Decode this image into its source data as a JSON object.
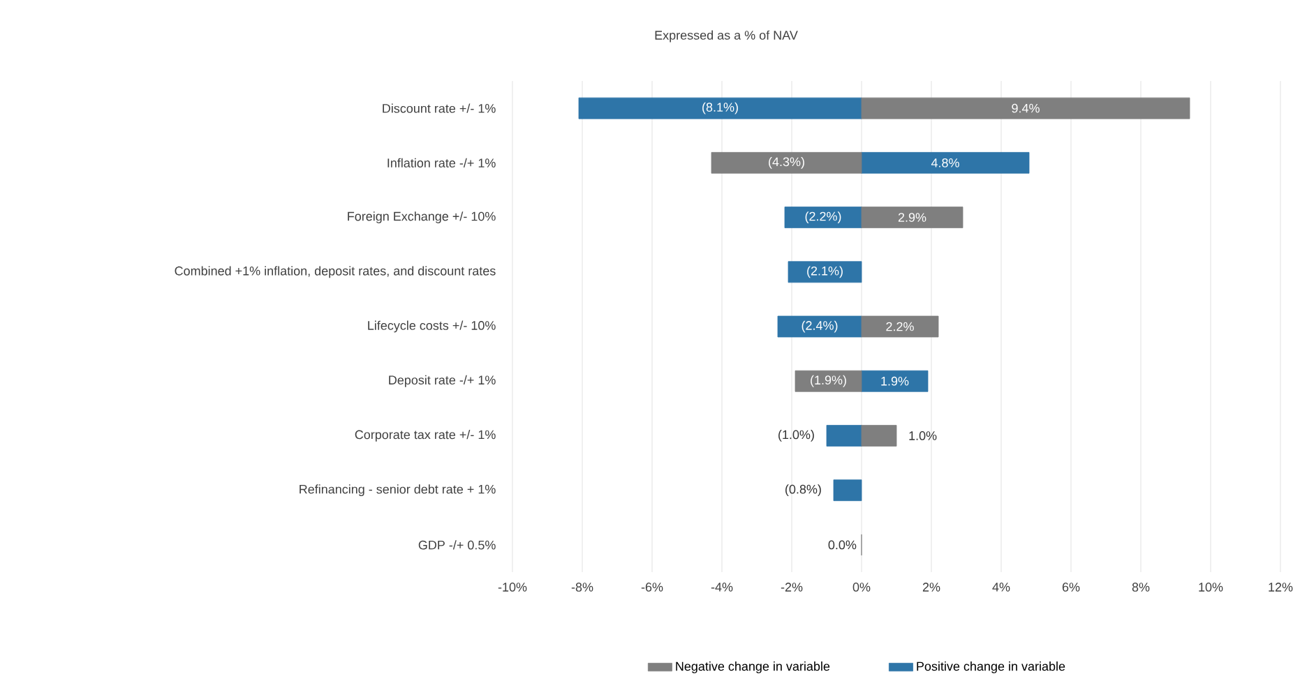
{
  "chart_data": {
    "type": "bar",
    "orientation": "horizontal",
    "title": "Expressed as a % of NAV",
    "categories": [
      "Discount rate +/- 1%",
      "Inflation rate -/+ 1%",
      "Foreign Exchange +/- 10%",
      "Combined +1% inflation, deposit rates, and discount rates",
      "Lifecycle costs +/- 10%",
      "Deposit rate -/+ 1%",
      "Corporate tax rate +/- 1%",
      "Refinancing - senior debt rate + 1%",
      "GDP -/+ 0.5%"
    ],
    "series": [
      {
        "name": "Negative change in variable",
        "color": "#7f7f7f",
        "values": [
          9.4,
          -4.3,
          2.9,
          null,
          2.2,
          -1.9,
          1.0,
          null,
          0.0
        ],
        "value_labels": [
          "9.4%",
          "(4.3%)",
          "2.9%",
          null,
          "2.2%",
          "(1.9%)",
          "1.0%",
          null,
          "0.0%"
        ]
      },
      {
        "name": "Positive change in variable",
        "color": "#2e75a8",
        "values": [
          -8.1,
          4.8,
          -2.2,
          -2.1,
          -2.4,
          1.9,
          -1.0,
          -0.8,
          null
        ],
        "value_labels": [
          "(8.1%)",
          "4.8%",
          "(2.2%)",
          "(2.1%)",
          "(2.4%)",
          "1.9%",
          "(1.0%)",
          "(0.8%)",
          null
        ]
      }
    ],
    "xlim": [
      -10,
      12
    ],
    "xticks": [
      {
        "value": -10,
        "label": "-10%"
      },
      {
        "value": -8,
        "label": "-8%"
      },
      {
        "value": -6,
        "label": "-6%"
      },
      {
        "value": -4,
        "label": "-4%"
      },
      {
        "value": -2,
        "label": "-2%"
      },
      {
        "value": 0,
        "label": "0%"
      },
      {
        "value": 2,
        "label": "2%"
      },
      {
        "value": 4,
        "label": "4%"
      },
      {
        "value": 6,
        "label": "6%"
      },
      {
        "value": 8,
        "label": "8%"
      },
      {
        "value": 10,
        "label": "10%"
      },
      {
        "value": 12,
        "label": "12%"
      }
    ],
    "grid": "x",
    "legend": "bottom",
    "stacked": true
  }
}
